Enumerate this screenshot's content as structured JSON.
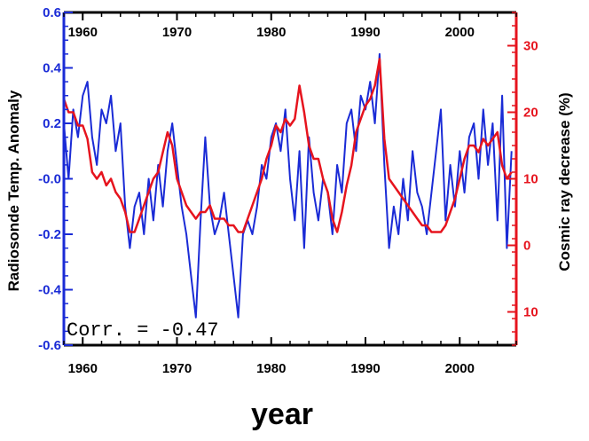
{
  "chart_data": {
    "type": "line",
    "xlabel": "year",
    "ylabel": "Radiosonde Temp. Anomaly",
    "ylabel_right": "Cosmic ray decrease (%)",
    "annotation": "Corr. = -0.47",
    "xlim": [
      1958,
      2006
    ],
    "ylim": [
      -0.6,
      0.6
    ],
    "ylim_right": [
      -15,
      35
    ],
    "x_ticks": [
      "1960",
      "1970",
      "1980",
      "1990",
      "2000"
    ],
    "y_ticks": [
      "0.6",
      "0.4",
      "0.2",
      "-0.0",
      "-0.2",
      "-0.4",
      "-0.6"
    ],
    "y_ticks_right": [
      {
        "value": 30,
        "label": "30"
      },
      {
        "value": 20,
        "label": "20"
      },
      {
        "value": 10,
        "label": "10"
      },
      {
        "value": 0,
        "label": "0"
      },
      {
        "value": -10,
        "label": "10"
      }
    ],
    "colors": {
      "series1": "#1a2bd6",
      "series2": "#e6141e",
      "frame": "#000000"
    },
    "series": [
      {
        "axis": "left",
        "x": [
          1958,
          1958.5,
          1959,
          1959.5,
          1960,
          1960.5,
          1961,
          1961.5,
          1962,
          1962.5,
          1963,
          1963.5,
          1964,
          1964.5,
          1965,
          1965.5,
          1966,
          1966.5,
          1967,
          1967.5,
          1968,
          1968.5,
          1969,
          1969.5,
          1970,
          1970.5,
          1971,
          1971.5,
          1972,
          1972.5,
          1973,
          1973.5,
          1974,
          1974.5,
          1975,
          1975.5,
          1976,
          1976.5,
          1977,
          1977.5,
          1978,
          1978.5,
          1979,
          1979.5,
          1980,
          1980.5,
          1981,
          1981.5,
          1982,
          1982.5,
          1983,
          1983.5,
          1984,
          1984.5,
          1985,
          1985.5,
          1986,
          1986.5,
          1987,
          1987.5,
          1988,
          1988.5,
          1989,
          1989.5,
          1990,
          1990.5,
          1991,
          1991.5,
          1992,
          1992.5,
          1993,
          1993.5,
          1994,
          1994.5,
          1995,
          1995.5,
          1996,
          1996.5,
          1997,
          1997.5,
          1998,
          1998.5,
          1999,
          1999.5,
          2000,
          2000.5,
          2001,
          2001.5,
          2002,
          2002.5,
          2003,
          2003.5,
          2004,
          2004.5,
          2005,
          2005.5
        ],
        "values": [
          0.2,
          0.0,
          0.25,
          0.15,
          0.3,
          0.35,
          0.15,
          0.05,
          0.25,
          0.2,
          0.3,
          0.1,
          0.2,
          -0.1,
          -0.25,
          -0.1,
          -0.05,
          -0.2,
          0.0,
          -0.15,
          0.05,
          -0.1,
          0.1,
          0.2,
          0.05,
          -0.1,
          -0.2,
          -0.35,
          -0.5,
          -0.15,
          0.15,
          -0.1,
          -0.2,
          -0.15,
          -0.05,
          -0.2,
          -0.35,
          -0.5,
          -0.2,
          -0.15,
          -0.2,
          -0.1,
          0.05,
          0.0,
          0.15,
          0.2,
          0.1,
          0.25,
          0.0,
          -0.15,
          0.1,
          -0.25,
          0.15,
          -0.05,
          -0.15,
          0.0,
          -0.05,
          -0.2,
          0.05,
          -0.05,
          0.2,
          0.25,
          0.1,
          0.3,
          0.25,
          0.35,
          0.2,
          0.45,
          0.05,
          -0.25,
          -0.1,
          -0.2,
          0.0,
          -0.15,
          0.1,
          -0.05,
          -0.1,
          -0.2,
          -0.05,
          0.1,
          0.25,
          -0.15,
          0.05,
          -0.1,
          0.1,
          -0.05,
          0.15,
          0.2,
          0.0,
          0.25,
          0.05,
          0.2,
          -0.15,
          0.3,
          -0.25,
          0.1
        ]
      },
      {
        "axis": "right",
        "x": [
          1958,
          1958.5,
          1959,
          1959.5,
          1960,
          1960.5,
          1961,
          1961.5,
          1962,
          1962.5,
          1963,
          1963.5,
          1964,
          1964.5,
          1965,
          1965.5,
          1966,
          1966.5,
          1967,
          1967.5,
          1968,
          1968.5,
          1969,
          1969.5,
          1970,
          1970.5,
          1971,
          1971.5,
          1972,
          1972.5,
          1973,
          1973.5,
          1974,
          1974.5,
          1975,
          1975.5,
          1976,
          1976.5,
          1977,
          1977.5,
          1978,
          1978.5,
          1979,
          1979.5,
          1980,
          1980.5,
          1981,
          1981.5,
          1982,
          1982.5,
          1983,
          1983.5,
          1984,
          1984.5,
          1985,
          1985.5,
          1986,
          1986.5,
          1987,
          1987.5,
          1988,
          1988.5,
          1989,
          1989.5,
          1990,
          1990.5,
          1991,
          1991.5,
          1992,
          1992.5,
          1993,
          1993.5,
          1994,
          1994.5,
          1995,
          1995.5,
          1996,
          1996.5,
          1997,
          1997.5,
          1998,
          1998.5,
          1999,
          1999.5,
          2000,
          2000.5,
          2001,
          2001.5,
          2002,
          2002.5,
          2003,
          2003.5,
          2004,
          2004.5,
          2005,
          2005.5
        ],
        "values": [
          22,
          20,
          20,
          18,
          18,
          16,
          11,
          10,
          11,
          9,
          10,
          8,
          7,
          5,
          2,
          2,
          4,
          6,
          8,
          10,
          11,
          14,
          17,
          15,
          10,
          8,
          6,
          5,
          4,
          5,
          5,
          6,
          4,
          4,
          4,
          3,
          3,
          2,
          2,
          4,
          6,
          8,
          10,
          13,
          15,
          18,
          17,
          19,
          18,
          19,
          24,
          20,
          15,
          13,
          13,
          10,
          8,
          4,
          2,
          5,
          9,
          12,
          17,
          19,
          21,
          22,
          24,
          28,
          16,
          10,
          9,
          8,
          7,
          6,
          5,
          4,
          3,
          3,
          2,
          2,
          2,
          3,
          5,
          7,
          10,
          13,
          15,
          15,
          14,
          16,
          15,
          16,
          17,
          12,
          10,
          11
        ]
      }
    ]
  }
}
